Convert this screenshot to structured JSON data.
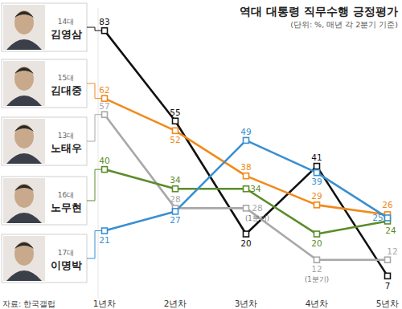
{
  "chart_data": {
    "type": "line",
    "title": "역대 대통령 직무수행 긍정평가",
    "subtitle": "(단위: %, 매년 각 2분기 기준)",
    "source": "자료: 한국갤럽",
    "categories": [
      "1년차",
      "2년차",
      "3년차",
      "4년차",
      "5년차"
    ],
    "series": [
      {
        "name": "김영삼",
        "term": "14대",
        "color": "#111111",
        "values": [
          83,
          55,
          20,
          41,
          7
        ]
      },
      {
        "name": "김대중",
        "term": "15대",
        "color": "#f08a1c",
        "values": [
          62,
          52,
          38,
          29,
          26
        ]
      },
      {
        "name": "노태우",
        "term": "13대",
        "color": "#a8a8a8",
        "values": [
          57,
          28,
          28,
          12,
          12
        ],
        "notes": [
          null,
          null,
          "(1분기)",
          "(1분기)",
          null
        ]
      },
      {
        "name": "노무현",
        "term": "16대",
        "color": "#5b8c2a",
        "values": [
          40,
          34,
          34,
          20,
          24
        ]
      },
      {
        "name": "이명박",
        "term": "17대",
        "color": "#3a8fd0",
        "values": [
          21,
          27,
          49,
          39,
          25
        ]
      }
    ],
    "ylim": [
      0,
      90
    ],
    "tick_labels": "x",
    "data_labels": true,
    "marker": "square",
    "grid": false
  }
}
